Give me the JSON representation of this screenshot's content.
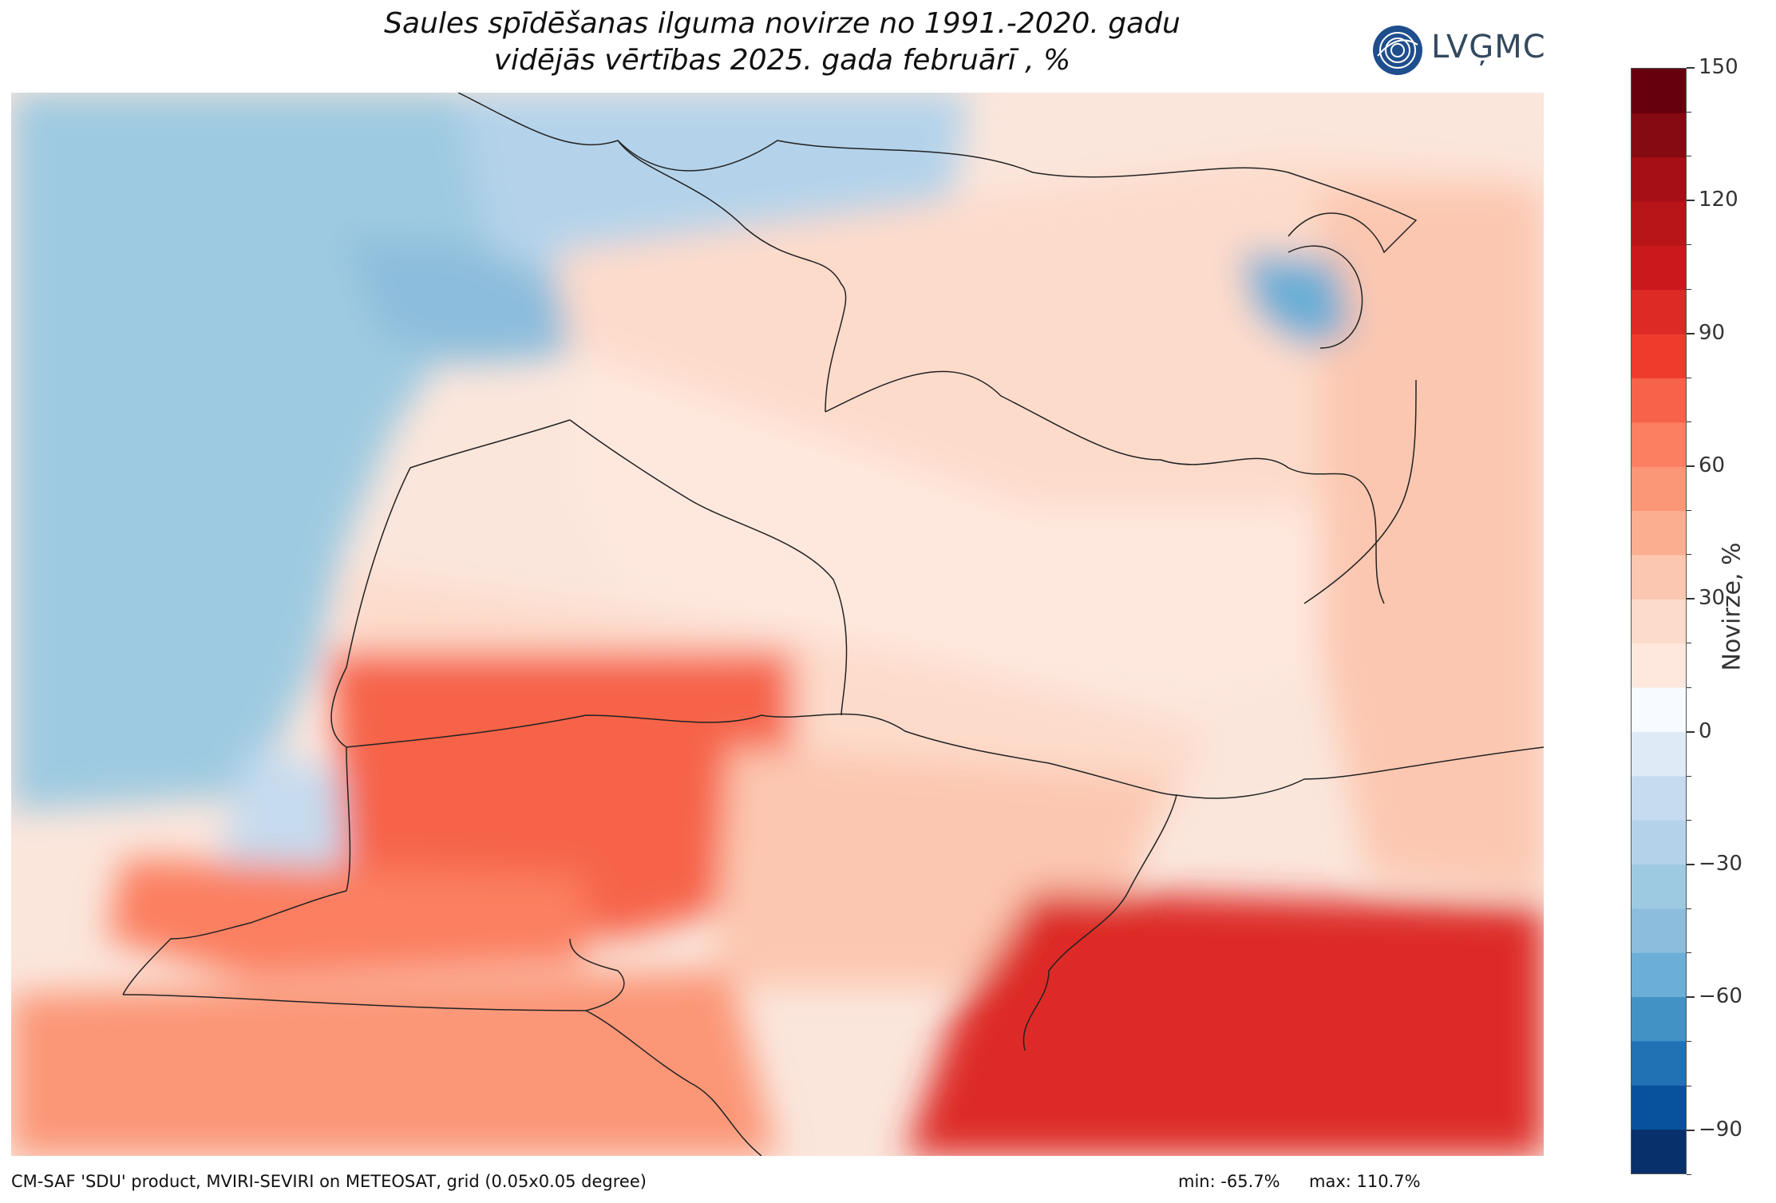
{
  "title": {
    "line1": "Saules spīdēšanas ilguma novirze no 1991.-2020. gadu",
    "line2": "vidējās vērtības 2025. gada februārī , %"
  },
  "logo": {
    "text": "LVĢMC",
    "icon": "globe-logo-icon",
    "color": "#1f4e8c"
  },
  "colorbar": {
    "title": "Novirze, %",
    "min": -100,
    "max": 150,
    "step": 10,
    "labels": [
      "150",
      "120",
      "90",
      "60",
      "30",
      "0",
      "−30",
      "−60",
      "−90"
    ],
    "label_values": [
      150,
      120,
      90,
      60,
      30,
      0,
      -30,
      -60,
      -90
    ],
    "colors": {
      "-100": "#08306b",
      "-90": "#08519c",
      "-80": "#2171b5",
      "-70": "#4292c6",
      "-60": "#6baed6",
      "-50": "#8cbddc",
      "-40": "#9ecae1",
      "-30": "#b4d3ea",
      "-20": "#c6dbef",
      "-10": "#deebf7",
      "0": "#f7fbff",
      "10": "#fee8de",
      "20": "#fddbcb",
      "30": "#fcc7b0",
      "40": "#fcae91",
      "50": "#fb9677",
      "60": "#fb7f60",
      "70": "#f6634a",
      "80": "#ef3b2c",
      "90": "#dd2a25",
      "100": "#cb181d",
      "110": "#b81519",
      "120": "#a50f15",
      "130": "#860a12",
      "140": "#67000d"
    }
  },
  "footer": {
    "source": "CM-SAF 'SDU' product, MVIRI-SEVIRI on METEOSAT, grid (0.05x0.05 degree)",
    "min": "min: -65.7%",
    "max": "max: 110.7%"
  },
  "map": {
    "region": "Baltic states (Latvia, Lithuania, Estonia) and surroundings",
    "anomaly_regions": [
      {
        "name": "baltic-sea-west",
        "value": -35
      },
      {
        "name": "gulf-of-riga",
        "value": -45
      },
      {
        "name": "baltic-open-sea",
        "value": -40
      },
      {
        "name": "gulf-of-finland",
        "value": -25
      },
      {
        "name": "lake-peipus",
        "value": -60
      },
      {
        "name": "curonian-lagoon",
        "value": -20
      },
      {
        "name": "latvia-north",
        "value": 15
      },
      {
        "name": "latvia-south",
        "value": 20
      },
      {
        "name": "lithuania-west",
        "value": 70
      },
      {
        "name": "lithuania-east",
        "value": 30
      },
      {
        "name": "kaliningrad",
        "value": 60
      },
      {
        "name": "poland-north",
        "value": 50
      },
      {
        "name": "belarus-south",
        "value": 90
      },
      {
        "name": "russia-west",
        "value": 35
      },
      {
        "name": "estonia",
        "value": 20
      }
    ]
  }
}
